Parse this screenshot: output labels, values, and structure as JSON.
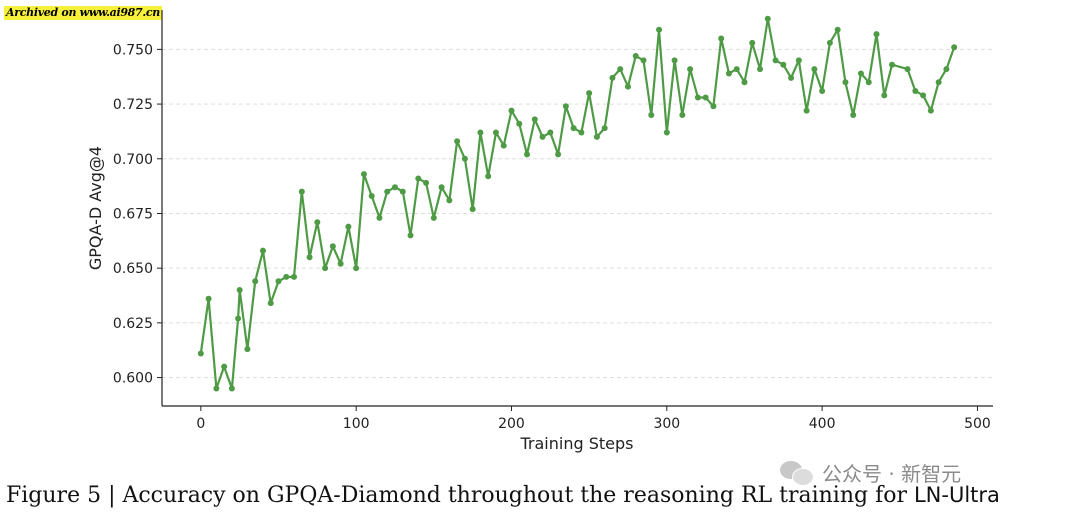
{
  "archive_label": "Archived on www.ai987.cn",
  "caption": {
    "prefix": "Figure 5 | Accuracy on GPQA-Diamond throughout the reasoning RL training for ",
    "model": "LN-Ultra"
  },
  "watermark": "公众号 · 新智元",
  "colors": {
    "line": "#4e9a45",
    "grid": "#dddddd",
    "axis": "#222222"
  },
  "chart_data": {
    "type": "line",
    "xlabel": "Training Steps",
    "ylabel": "GPQA-D Avg@4",
    "xlim": [
      -25,
      510
    ],
    "ylim": [
      0.587,
      0.768
    ],
    "xticks": [
      0,
      100,
      200,
      300,
      400,
      500
    ],
    "yticks": [
      0.6,
      0.625,
      0.65,
      0.675,
      0.7,
      0.725,
      0.75
    ],
    "xtick_labels": [
      "0",
      "100",
      "200",
      "300",
      "400",
      "500"
    ],
    "ytick_labels": [
      "0.600",
      "0.625",
      "0.650",
      "0.675",
      "0.700",
      "0.725",
      "0.750"
    ],
    "grid": "horizontal dashed",
    "series": [
      {
        "x": [
          0,
          5,
          10,
          15,
          20,
          24,
          25,
          30,
          35,
          40,
          45,
          50,
          55,
          60,
          65,
          70,
          75,
          80,
          85,
          90,
          95,
          100,
          105,
          110,
          115,
          120,
          125,
          130,
          135,
          140,
          145,
          150,
          155,
          160,
          165,
          170,
          175,
          180,
          185,
          190,
          195,
          200,
          205,
          210,
          215,
          220,
          225,
          230,
          235,
          240,
          245,
          250,
          255,
          260,
          265,
          270,
          275,
          280,
          285,
          290,
          295,
          300,
          305,
          310,
          315,
          320,
          325,
          330,
          335,
          340,
          345,
          350,
          355,
          360,
          365,
          370,
          375,
          380,
          385,
          390,
          395,
          400,
          405,
          410,
          415,
          420,
          425,
          430,
          435,
          440,
          445,
          455,
          460,
          465,
          470,
          475,
          480,
          485
        ],
        "y": [
          0.611,
          0.636,
          0.595,
          0.605,
          0.595,
          0.627,
          0.64,
          0.613,
          0.644,
          0.658,
          0.634,
          0.644,
          0.646,
          0.646,
          0.685,
          0.655,
          0.671,
          0.65,
          0.66,
          0.652,
          0.669,
          0.65,
          0.693,
          0.683,
          0.673,
          0.685,
          0.687,
          0.685,
          0.665,
          0.691,
          0.689,
          0.673,
          0.687,
          0.681,
          0.708,
          0.7,
          0.677,
          0.712,
          0.692,
          0.712,
          0.706,
          0.722,
          0.716,
          0.702,
          0.718,
          0.71,
          0.712,
          0.702,
          0.724,
          0.714,
          0.712,
          0.73,
          0.71,
          0.714,
          0.737,
          0.741,
          0.733,
          0.747,
          0.745,
          0.72,
          0.759,
          0.712,
          0.745,
          0.72,
          0.741,
          0.728,
          0.728,
          0.724,
          0.755,
          0.739,
          0.741,
          0.735,
          0.753,
          0.741,
          0.764,
          0.745,
          0.743,
          0.737,
          0.745,
          0.722,
          0.741,
          0.731,
          0.753,
          0.759,
          0.735,
          0.72,
          0.739,
          0.735,
          0.757,
          0.729,
          0.743,
          0.741,
          0.731,
          0.729,
          0.722,
          0.735,
          0.741,
          0.751
        ]
      }
    ]
  }
}
